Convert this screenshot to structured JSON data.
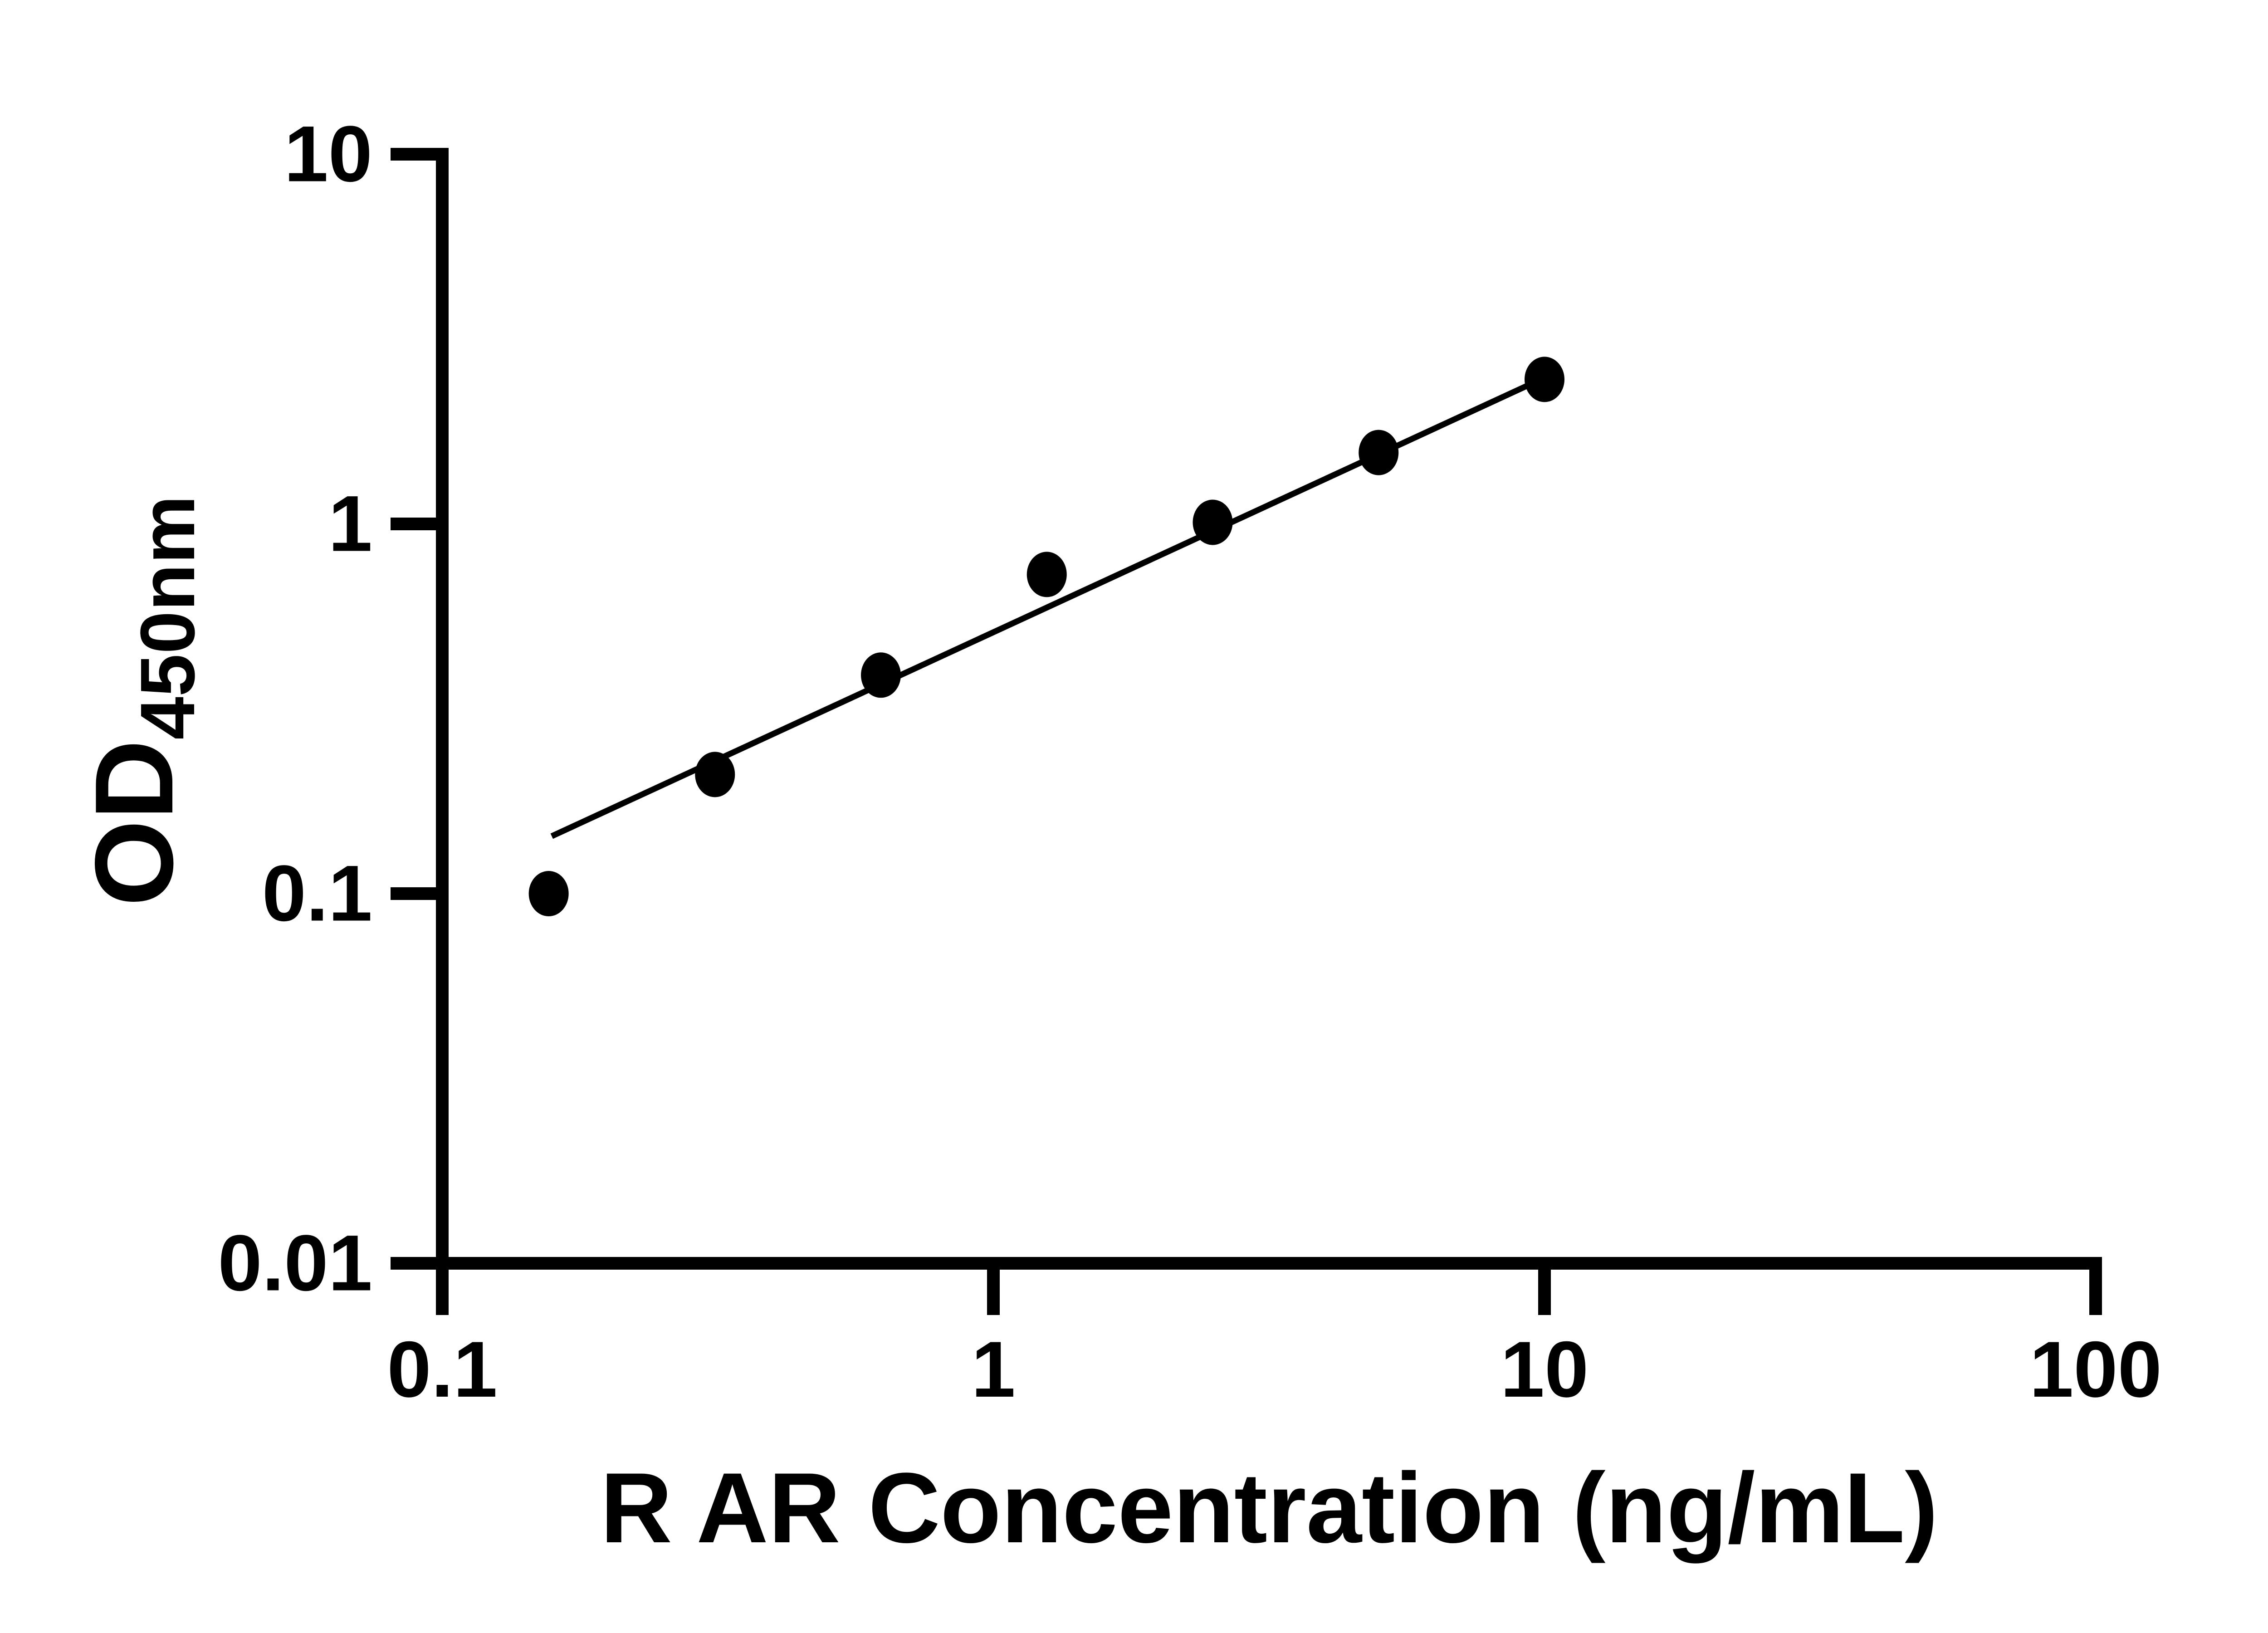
{
  "colors": {
    "background": "#ffffff",
    "foreground": "#000000"
  },
  "chart_data": {
    "type": "scatter",
    "title": "",
    "xlabel": "R AR Concentration (ng/mL)",
    "ylabel_main": "OD",
    "ylabel_sub": "450nm",
    "x_scale": "log10",
    "y_scale": "log10",
    "xlim": [
      0.1,
      100
    ],
    "ylim": [
      0.01,
      10
    ],
    "grid": false,
    "legend_position": "none",
    "x_ticks": [
      {
        "value": 0.1,
        "label": "0.1"
      },
      {
        "value": 1,
        "label": "1"
      },
      {
        "value": 10,
        "label": "10"
      },
      {
        "value": 100,
        "label": "100"
      }
    ],
    "y_ticks": [
      {
        "value": 10,
        "label": "10"
      },
      {
        "value": 1,
        "label": "1"
      },
      {
        "value": 0.1,
        "label": "0.1"
      },
      {
        "value": 0.01,
        "label": "0.01"
      }
    ],
    "series": [
      {
        "marker": "filled-circle",
        "color": "#000000",
        "points": [
          {
            "x": 0.156,
            "y": 0.1
          },
          {
            "x": 0.3125,
            "y": 0.21
          },
          {
            "x": 0.625,
            "y": 0.39
          },
          {
            "x": 1.25,
            "y": 0.73
          },
          {
            "x": 2.5,
            "y": 1.01
          },
          {
            "x": 5,
            "y": 1.56
          },
          {
            "x": 10,
            "y": 2.46
          }
        ]
      }
    ],
    "fit_line": {
      "x1": 0.158,
      "y1": 0.143,
      "x2": 10.2,
      "y2": 2.52,
      "color": "#000000"
    }
  }
}
